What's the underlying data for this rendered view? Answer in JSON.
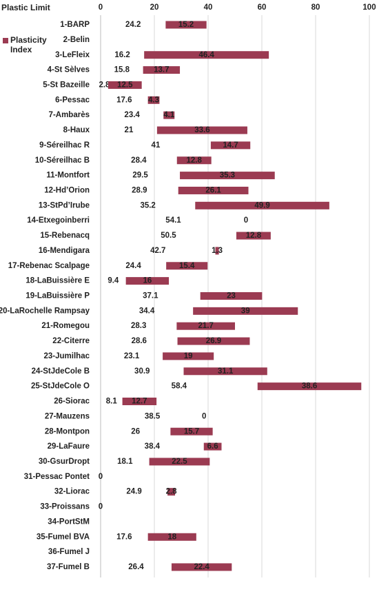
{
  "chart_data": {
    "type": "floating-bar",
    "categories": [
      "1-BARP",
      "2-Belin",
      "3-LeFleix",
      "4-St Sèlves",
      "5-St Bazeille",
      "6-Pessac",
      "7-Ambarès",
      "8-Haux",
      "9-Séreilhac R",
      "10-Séreilhac B",
      "11-Montfort",
      "12-Hd’Orion",
      "13-StPd’Irube",
      "14-Etxegoinberri",
      "15-Rebenacq",
      "16-Mendigara",
      "17-Rebenac Scalpage",
      "18-LaBuissière E",
      "19-LaBuissière P",
      "20-LaRochelle Rampsay",
      "21-Romegou",
      "22-Citerre",
      "23-Jumilhac",
      "24-StJdeCole B",
      "25-StJdeCole O",
      "26-Siorac",
      "27-Mauzens",
      "28-Montpon",
      "29-LaFaure",
      "30-GsurDropt",
      "31-Pessac Pontet",
      "32-Liorac",
      "33-Proissans",
      "34-PortStM",
      "35-Fumel BVA",
      "36-Fumel J",
      "37-Fumel B"
    ],
    "series": [
      {
        "name": "Plastic Limit",
        "values": [
          24.2,
          null,
          16.2,
          15.8,
          2.8,
          17.6,
          23.4,
          21,
          41,
          28.4,
          29.5,
          28.9,
          35.2,
          54.1,
          50.5,
          42.7,
          24.4,
          9.4,
          37.1,
          34.4,
          28.3,
          28.6,
          23.1,
          30.9,
          58.4,
          8.1,
          38.5,
          26,
          38.4,
          18.1,
          0,
          24.9,
          0,
          null,
          17.6,
          null,
          26.4
        ]
      },
      {
        "name": "Plasticity Index",
        "color": "#9b3b52",
        "values": [
          15.2,
          null,
          46.4,
          13.7,
          12.5,
          4.3,
          4.1,
          33.6,
          14.7,
          12.8,
          35.3,
          26.1,
          49.9,
          0,
          12.8,
          1.3,
          15.4,
          16,
          23,
          39,
          21.7,
          26.9,
          19,
          31.1,
          38.6,
          12.7,
          0,
          15.7,
          6.6,
          22.5,
          null,
          2.8,
          null,
          null,
          18,
          null,
          22.4
        ]
      }
    ],
    "xlim": [
      0,
      100
    ],
    "xticks": [
      0,
      20,
      40,
      60,
      80,
      100
    ],
    "grid": true
  }
}
